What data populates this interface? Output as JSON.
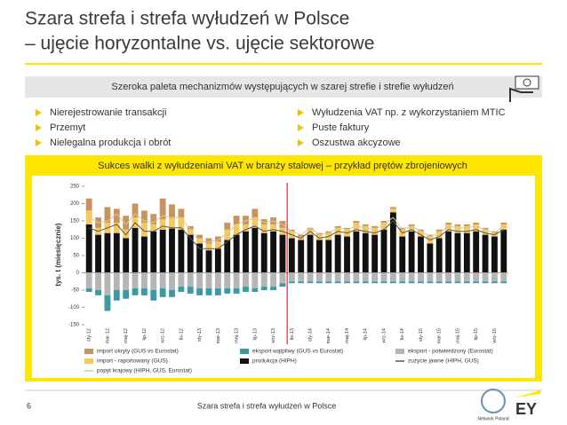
{
  "header": {
    "title_lines": [
      "Szara strefa i strefa wyłudzeń w Polsce",
      "– ujęcie horyzontalne vs. ujęcie sektorowe"
    ]
  },
  "banner": "Szeroka paleta mechanizmów występujących w szarej strefie i strefie wyłudzeń",
  "bullets": {
    "left": [
      "Nierejestrowanie transakcji",
      "Przemyt",
      "Nielegalna produkcja i obrót"
    ],
    "right": [
      "Wyłudzenia VAT np. z wykorzystaniem MTIC",
      "Puste faktury",
      "Oszustwa akcyzowe"
    ]
  },
  "chart_data": {
    "type": "bar",
    "title": "Sukces walki z wyłudzeniami VAT w branży stalowej – przykład prętów zbrojeniowych",
    "y_label": "tys. t (miesięcznie)",
    "ylim": [
      -150,
      250
    ],
    "yticks": [
      -150,
      -100,
      -50,
      0,
      50,
      100,
      150,
      200,
      250
    ],
    "categories": [
      "sty-12",
      null,
      "mar-12",
      null,
      "maj-12",
      null,
      "lip-12",
      null,
      "wrz-12",
      null,
      "lis-12",
      null,
      "sty-13",
      null,
      "mar-13",
      null,
      "maj-13",
      null,
      "lip-13",
      null,
      "wrz-13",
      null,
      "lis-13",
      null,
      "sty-14",
      null,
      "mar-14",
      null,
      "maj-14",
      null,
      "lip-14",
      null,
      "wrz-14",
      null,
      "lis-14",
      null,
      "sty-15",
      null,
      "mar-15",
      null,
      "maj-15",
      null,
      "lip-15",
      null,
      "wrz-15",
      null
    ],
    "series": [
      {
        "name": "import ukryty (GUS vs Eurostat)",
        "color": "#c9935f",
        "type": "bar",
        "values": [
          35,
          30,
          45,
          40,
          40,
          40,
          35,
          30,
          60,
          40,
          25,
          10,
          10,
          15,
          15,
          20,
          25,
          25,
          25,
          15,
          20,
          20,
          5,
          5,
          5,
          5,
          5,
          5,
          5,
          5,
          5,
          5,
          5,
          5,
          5,
          5,
          5,
          5,
          5,
          5,
          5,
          5,
          5,
          5,
          5,
          5
        ]
      },
      {
        "name": "eksport wątpliwy (GUS vs Eurostat)",
        "color": "#3a9aa3",
        "type": "bar",
        "values": [
          -10,
          -15,
          -45,
          -30,
          -25,
          -20,
          -20,
          -30,
          -25,
          -20,
          -15,
          -20,
          -20,
          -20,
          -20,
          -15,
          -15,
          -15,
          -10,
          -10,
          -10,
          -10,
          -5,
          -5,
          -5,
          -5,
          -5,
          -5,
          -5,
          -5,
          -5,
          -5,
          -5,
          -5,
          -5,
          -5,
          -5,
          -5,
          -5,
          -5,
          -5,
          -5,
          -5,
          -5,
          -5,
          -5
        ]
      },
      {
        "name": "eksport - potwierdzony (Eurostat)",
        "color": "#b5b5b5",
        "type": "bar",
        "values": [
          -45,
          -50,
          -65,
          -50,
          -50,
          -45,
          -45,
          -50,
          -45,
          -50,
          -40,
          -40,
          -45,
          -45,
          -45,
          -45,
          -45,
          -40,
          -45,
          -40,
          -40,
          -30,
          -25,
          -25,
          -25,
          -25,
          -25,
          -25,
          -25,
          -25,
          -25,
          -25,
          -25,
          -25,
          -25,
          -25,
          -25,
          -25,
          -25,
          -25,
          -25,
          -25,
          -25,
          -25,
          -25,
          -25
        ]
      },
      {
        "name": "import - raportowany (GUS)",
        "color": "#f6c85c",
        "type": "bar",
        "values": [
          40,
          20,
          30,
          30,
          25,
          30,
          40,
          20,
          30,
          30,
          35,
          15,
          15,
          20,
          20,
          30,
          30,
          20,
          30,
          25,
          20,
          20,
          20,
          10,
          15,
          15,
          20,
          20,
          20,
          25,
          20,
          20,
          20,
          10,
          20,
          15,
          15,
          20,
          20,
          20,
          20,
          20,
          20,
          15,
          10,
          15
        ]
      },
      {
        "name": "produkcja (HIPH)",
        "color": "#111111",
        "type": "bar",
        "values": [
          140,
          110,
          115,
          115,
          100,
          130,
          105,
          120,
          125,
          128,
          125,
          110,
          85,
          65,
          70,
          95,
          110,
          120,
          130,
          115,
          120,
          110,
          100,
          95,
          110,
          95,
          95,
          110,
          105,
          120,
          115,
          110,
          125,
          175,
          105,
          120,
          105,
          85,
          100,
          120,
          115,
          115,
          120,
          110,
          105,
          125
        ]
      },
      {
        "name": "zużycie jawne (HIPH, GUS)",
        "color": "#555555",
        "type": "line",
        "values": [
          130,
          120,
          130,
          140,
          110,
          145,
          120,
          120,
          135,
          130,
          130,
          100,
          70,
          70,
          70,
          90,
          110,
          125,
          135,
          120,
          125,
          120,
          110,
          100,
          120,
          100,
          105,
          120,
          115,
          125,
          120,
          115,
          125,
          150,
          115,
          125,
          110,
          95,
          105,
          125,
          120,
          120,
          125,
          115,
          110,
          125
        ]
      },
      {
        "name": "popyt krajowy (HIPH, GUS, Eurostat)",
        "color": "#d6cc98",
        "type": "line",
        "values": [
          160,
          145,
          150,
          170,
          140,
          170,
          150,
          145,
          165,
          160,
          160,
          125,
          90,
          90,
          95,
          115,
          140,
          150,
          160,
          145,
          150,
          140,
          120,
          110,
          130,
          110,
          115,
          130,
          125,
          135,
          130,
          125,
          140,
          160,
          125,
          135,
          120,
          105,
          115,
          135,
          130,
          130,
          135,
          125,
          115,
          135
        ]
      }
    ]
  },
  "footer": {
    "page": "6",
    "text": "Szara strefa i strefa wyłudzeń w Polsce",
    "logo": "EY",
    "logo_sub": "Network Poland"
  }
}
